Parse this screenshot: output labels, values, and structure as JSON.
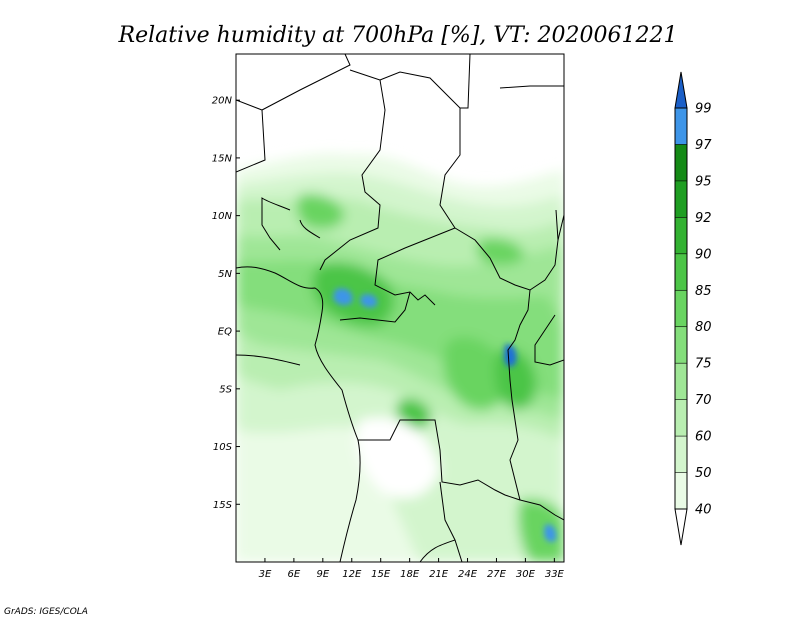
{
  "title": "Relative humidity at 700hPa [%], VT: 2020061221",
  "credit": "GrADS: IGES/COLA",
  "map": {
    "lon_range": [
      0,
      34
    ],
    "lat_range": [
      -20,
      24
    ],
    "lon_ticks": [
      {
        "value": 3,
        "label": "3E"
      },
      {
        "value": 6,
        "label": "6E"
      },
      {
        "value": 9,
        "label": "9E"
      },
      {
        "value": 12,
        "label": "12E"
      },
      {
        "value": 15,
        "label": "15E"
      },
      {
        "value": 18,
        "label": "18E"
      },
      {
        "value": 21,
        "label": "21E"
      },
      {
        "value": 24,
        "label": "24E"
      },
      {
        "value": 27,
        "label": "27E"
      },
      {
        "value": 30,
        "label": "30E"
      },
      {
        "value": 33,
        "label": "33E"
      }
    ],
    "lat_ticks": [
      {
        "value": 20,
        "label": "20N"
      },
      {
        "value": 15,
        "label": "15N"
      },
      {
        "value": 10,
        "label": "10N"
      },
      {
        "value": 5,
        "label": "5N"
      },
      {
        "value": 0,
        "label": "EQ"
      },
      {
        "value": -5,
        "label": "5S"
      },
      {
        "value": -10,
        "label": "10S"
      },
      {
        "value": -15,
        "label": "15S"
      }
    ]
  },
  "colorbar": {
    "levels": [
      {
        "label": "40",
        "color": "#eafbe6"
      },
      {
        "label": "50",
        "color": "#d3f5cd"
      },
      {
        "label": "60",
        "color": "#b9eeb1"
      },
      {
        "label": "70",
        "color": "#9fe696"
      },
      {
        "label": "75",
        "color": "#84de7b"
      },
      {
        "label": "80",
        "color": "#69d461"
      },
      {
        "label": "85",
        "color": "#4cc547"
      },
      {
        "label": "90",
        "color": "#33b232"
      },
      {
        "label": "92",
        "color": "#1f9e22"
      },
      {
        "label": "95",
        "color": "#148a16"
      },
      {
        "label": "97",
        "color": "#3e95e8"
      },
      {
        "label": "99",
        "color": "#1f6ed8"
      }
    ],
    "over_color": "#1b5fc7",
    "under_color": "#ffffff"
  }
}
